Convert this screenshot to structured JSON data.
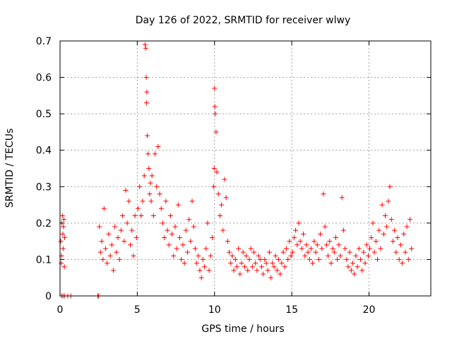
{
  "chart_data": {
    "type": "scatter",
    "title": "Day 126 of 2022, SRMTID for receiver wlwy",
    "xlabel": "GPS time / hours",
    "ylabel": "SRMTID / TECUs",
    "xlim": [
      0,
      24
    ],
    "ylim": [
      0,
      0.7
    ],
    "xticks": [
      0,
      5,
      10,
      15,
      20
    ],
    "xtick_labels": [
      "0",
      "5",
      "10",
      "15",
      "20"
    ],
    "yticks": [
      0,
      0.1,
      0.2,
      0.3,
      0.4,
      0.5,
      0.6,
      0.7
    ],
    "ytick_labels": [
      "0",
      "0.1",
      "0.2",
      "0.3",
      "0.4",
      "0.5",
      "0.6",
      "0.7"
    ],
    "grid": true,
    "marker": "plus",
    "marker_color": "#ff0000",
    "series": [
      {
        "name": "SRMTID",
        "x": [
          0.05,
          0.08,
          0.1,
          0.12,
          0.15,
          0.18,
          0.2,
          0.22,
          0.25,
          0.28,
          0.3,
          0.1,
          0.2,
          0.3,
          0.5,
          0.7,
          2.45,
          2.5,
          2.55,
          2.62,
          2.7,
          2.78,
          2.85,
          2.95,
          3.05,
          3.15,
          3.25,
          3.35,
          3.45,
          3.55,
          3.65,
          3.75,
          3.85,
          3.95,
          4.05,
          4.15,
          4.25,
          4.35,
          4.45,
          4.55,
          4.65,
          4.75,
          4.85,
          4.95,
          5.05,
          5.15,
          5.25,
          5.35,
          5.45,
          5.5,
          5.55,
          5.58,
          5.6,
          5.62,
          5.65,
          5.7,
          5.75,
          5.8,
          5.85,
          5.9,
          5.95,
          6.05,
          6.15,
          6.25,
          6.35,
          6.45,
          6.55,
          6.65,
          6.75,
          6.85,
          6.95,
          7.05,
          7.15,
          7.25,
          7.35,
          7.45,
          7.55,
          7.65,
          7.75,
          7.85,
          7.95,
          8.05,
          8.15,
          8.25,
          8.35,
          8.45,
          8.55,
          8.65,
          8.75,
          8.85,
          8.95,
          9.05,
          9.15,
          9.25,
          9.35,
          9.45,
          9.55,
          9.65,
          9.75,
          9.85,
          9.95,
          9.98,
          10.0,
          10.02,
          10.05,
          10.1,
          10.15,
          10.25,
          10.35,
          10.45,
          10.55,
          10.65,
          10.75,
          10.85,
          10.95,
          11.05,
          11.15,
          11.25,
          11.35,
          11.45,
          11.55,
          11.65,
          11.75,
          11.85,
          11.95,
          12.05,
          12.15,
          12.25,
          12.35,
          12.45,
          12.55,
          12.65,
          12.75,
          12.85,
          12.95,
          13.05,
          13.15,
          13.25,
          13.35,
          13.45,
          13.55,
          13.65,
          13.75,
          13.85,
          13.95,
          14.05,
          14.15,
          14.25,
          14.35,
          14.45,
          14.55,
          14.65,
          14.75,
          14.85,
          14.95,
          15.05,
          15.15,
          15.25,
          15.35,
          15.45,
          15.55,
          15.65,
          15.75,
          15.85,
          15.95,
          16.05,
          16.15,
          16.25,
          16.35,
          16.45,
          16.55,
          16.65,
          16.75,
          16.85,
          16.95,
          17.05,
          17.15,
          17.25,
          17.35,
          17.45,
          17.55,
          17.65,
          17.75,
          17.85,
          17.95,
          18.05,
          18.15,
          18.25,
          18.35,
          18.45,
          18.55,
          18.65,
          18.75,
          18.85,
          18.95,
          19.05,
          19.15,
          19.25,
          19.35,
          19.45,
          19.55,
          19.65,
          19.75,
          19.85,
          19.95,
          20.05,
          20.15,
          20.25,
          20.35,
          20.45,
          20.55,
          20.65,
          20.75,
          20.85,
          20.95,
          21.05,
          21.15,
          21.25,
          21.35,
          21.45,
          21.55,
          21.65,
          21.75,
          21.85,
          21.95,
          22.05,
          22.15,
          22.25,
          22.35,
          22.45,
          22.55,
          22.65,
          22.75
        ],
        "y": [
          0.15,
          0.09,
          0.11,
          0.2,
          0.22,
          0.17,
          0.13,
          0.19,
          0.21,
          0.08,
          0.16,
          0.0,
          0.0,
          0.0,
          0.0,
          0.0,
          0.0,
          0.0,
          0.19,
          0.12,
          0.15,
          0.1,
          0.24,
          0.13,
          0.09,
          0.17,
          0.11,
          0.14,
          0.07,
          0.19,
          0.12,
          0.16,
          0.1,
          0.18,
          0.22,
          0.15,
          0.29,
          0.2,
          0.26,
          0.14,
          0.18,
          0.11,
          0.22,
          0.16,
          0.24,
          0.3,
          0.22,
          0.26,
          0.33,
          0.69,
          0.68,
          0.6,
          0.53,
          0.56,
          0.44,
          0.39,
          0.35,
          0.28,
          0.31,
          0.26,
          0.33,
          0.22,
          0.39,
          0.3,
          0.41,
          0.28,
          0.24,
          0.2,
          0.16,
          0.26,
          0.18,
          0.14,
          0.22,
          0.17,
          0.11,
          0.19,
          0.13,
          0.25,
          0.16,
          0.1,
          0.14,
          0.09,
          0.18,
          0.12,
          0.21,
          0.15,
          0.26,
          0.19,
          0.13,
          0.09,
          0.11,
          0.07,
          0.05,
          0.1,
          0.08,
          0.13,
          0.2,
          0.07,
          0.11,
          0.16,
          0.3,
          0.35,
          0.57,
          0.52,
          0.5,
          0.45,
          0.34,
          0.28,
          0.22,
          0.25,
          0.18,
          0.32,
          0.27,
          0.15,
          0.12,
          0.09,
          0.11,
          0.07,
          0.1,
          0.08,
          0.13,
          0.06,
          0.09,
          0.12,
          0.08,
          0.11,
          0.07,
          0.1,
          0.13,
          0.08,
          0.12,
          0.09,
          0.07,
          0.11,
          0.1,
          0.08,
          0.06,
          0.1,
          0.09,
          0.07,
          0.12,
          0.05,
          0.09,
          0.08,
          0.11,
          0.07,
          0.1,
          0.06,
          0.09,
          0.12,
          0.08,
          0.13,
          0.1,
          0.15,
          0.11,
          0.12,
          0.16,
          0.18,
          0.14,
          0.2,
          0.15,
          0.13,
          0.17,
          0.11,
          0.14,
          0.12,
          0.1,
          0.13,
          0.09,
          0.15,
          0.12,
          0.14,
          0.1,
          0.17,
          0.13,
          0.28,
          0.19,
          0.14,
          0.11,
          0.15,
          0.09,
          0.13,
          0.12,
          0.16,
          0.1,
          0.14,
          0.11,
          0.27,
          0.18,
          0.13,
          0.1,
          0.08,
          0.12,
          0.07,
          0.09,
          0.06,
          0.11,
          0.08,
          0.13,
          0.1,
          0.07,
          0.12,
          0.09,
          0.14,
          0.11,
          0.13,
          0.16,
          0.2,
          0.12,
          0.15,
          0.1,
          0.18,
          0.13,
          0.25,
          0.17,
          0.22,
          0.19,
          0.26,
          0.3,
          0.21,
          0.15,
          0.18,
          0.12,
          0.16,
          0.1,
          0.14,
          0.09,
          0.17,
          0.12,
          0.19,
          0.1,
          0.21,
          0.13
        ]
      }
    ]
  }
}
